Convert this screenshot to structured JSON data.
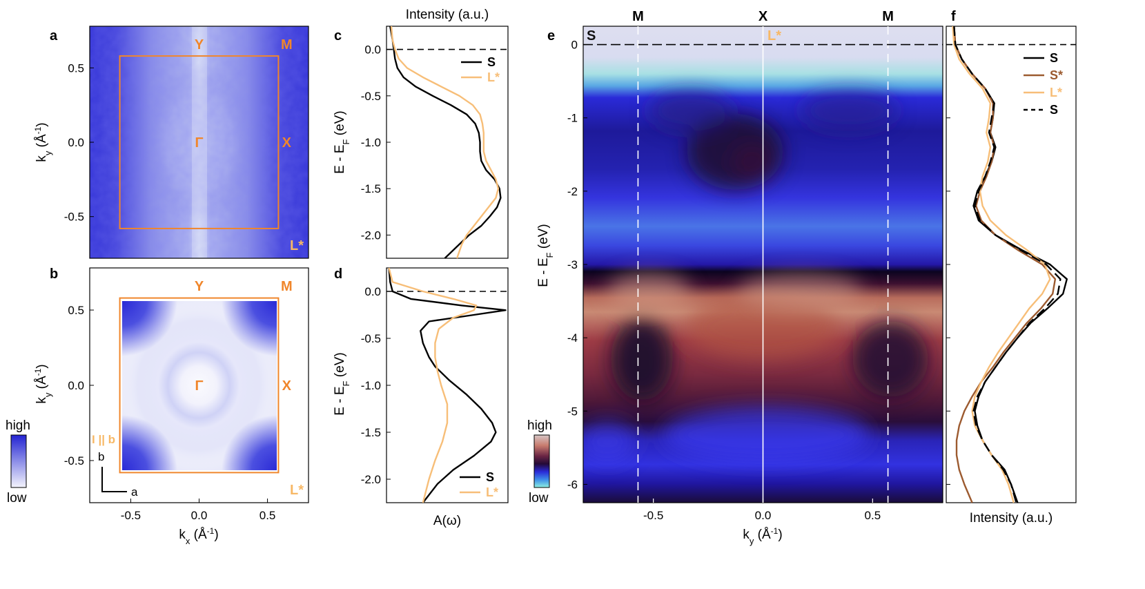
{
  "panel_labels": {
    "a": "a",
    "b": "b",
    "c": "c",
    "d": "d",
    "e": "e",
    "f": "f"
  },
  "colorbar_ab": {
    "high": "high",
    "low": "low"
  },
  "colorbar_e": {
    "high": "high",
    "low": "low"
  },
  "colors": {
    "S": "#000000",
    "S_star": "#9c5a2f",
    "L_star": "#f7be78",
    "bz_box": "#f0862b",
    "map_blue": "#3333d6",
    "map_low": "#f0f0fb"
  },
  "chart_data": [
    {
      "id": "a",
      "type": "heatmap",
      "title": "",
      "xlim": [
        -0.8,
        0.8
      ],
      "ylim": [
        -0.78,
        0.78
      ],
      "yticks": [
        -0.5,
        0.0,
        0.5
      ],
      "ytick_labels": [
        "-0.5",
        "0.0",
        "0.5"
      ],
      "ylabel_main": "k",
      "ylabel_sub": "y",
      "ylabel_unit": " (Å",
      "ylabel_exp": "-1",
      "ylabel_close": ")",
      "bz_box": {
        "kx": [
          -0.58,
          0.58
        ],
        "ky": [
          -0.58,
          0.58
        ]
      },
      "points": [
        {
          "label": "Y",
          "kx": 0.0,
          "ky": 0.66
        },
        {
          "label": "M",
          "kx": 0.64,
          "ky": 0.66
        },
        {
          "label": "Γ",
          "kx": 0.0,
          "ky": 0.0
        },
        {
          "label": "X",
          "kx": 0.64,
          "ky": 0.0
        }
      ],
      "tag": "L*"
    },
    {
      "id": "b",
      "type": "heatmap",
      "xlim": [
        -0.8,
        0.8
      ],
      "ylim": [
        -0.78,
        0.78
      ],
      "xticks": [
        -0.5,
        0.0,
        0.5
      ],
      "xtick_labels": [
        "-0.5",
        "0.0",
        "0.5"
      ],
      "yticks": [
        -0.5,
        0.0,
        0.5
      ],
      "ytick_labels": [
        "-0.5",
        "0.0",
        "0.5"
      ],
      "xlabel_main": "k",
      "xlabel_sub": "x",
      "xlabel_unit": " (Å",
      "xlabel_exp": "-1",
      "xlabel_close": ")",
      "ylabel_main": "k",
      "ylabel_sub": "y",
      "ylabel_unit": " (Å",
      "ylabel_exp": "-1",
      "ylabel_close": ")",
      "bz_box": {
        "kx": [
          -0.58,
          0.58
        ],
        "ky": [
          -0.58,
          0.58
        ]
      },
      "points": [
        {
          "label": "Y",
          "kx": 0.0,
          "ky": 0.66
        },
        {
          "label": "M",
          "kx": 0.64,
          "ky": 0.66
        },
        {
          "label": "Γ",
          "kx": 0.0,
          "ky": 0.0
        },
        {
          "label": "X",
          "kx": 0.64,
          "ky": 0.0
        }
      ],
      "tag": "L*",
      "field_label": "I || b",
      "lattice_axes": {
        "b": "b",
        "a": "a"
      }
    },
    {
      "id": "c",
      "type": "line",
      "title": "Intensity (a.u.)",
      "ylabel": "E - E",
      "ylabel_sub": "F",
      "ylabel_unit": " (eV)",
      "ylim": [
        -2.25,
        0.25
      ],
      "xlim": [
        0,
        1
      ],
      "yticks": [
        -2.0,
        -1.5,
        -1.0,
        -0.5,
        0.0
      ],
      "ytick_labels": [
        "-2.0",
        "-1.5",
        "-1.0",
        "-0.5",
        "0.0"
      ],
      "fermi_level": 0.0,
      "legend": [
        "S",
        "L*"
      ],
      "series": [
        {
          "name": "S",
          "color": "#000000",
          "E": [
            0.25,
            0.1,
            0.0,
            -0.1,
            -0.2,
            -0.3,
            -0.4,
            -0.5,
            -0.6,
            -0.7,
            -0.8,
            -0.9,
            -1.0,
            -1.1,
            -1.2,
            -1.3,
            -1.4,
            -1.5,
            -1.6,
            -1.7,
            -1.8,
            -1.9,
            -2.0,
            -2.1,
            -2.25
          ],
          "I": [
            0.03,
            0.05,
            0.06,
            0.07,
            0.09,
            0.14,
            0.24,
            0.38,
            0.53,
            0.66,
            0.73,
            0.76,
            0.77,
            0.77,
            0.78,
            0.82,
            0.89,
            0.93,
            0.94,
            0.91,
            0.85,
            0.78,
            0.68,
            0.6,
            0.48
          ]
        },
        {
          "name": "L*",
          "color": "#f7be78",
          "E": [
            0.25,
            0.1,
            0.0,
            -0.1,
            -0.2,
            -0.3,
            -0.4,
            -0.5,
            -0.6,
            -0.7,
            -0.8,
            -0.9,
            -1.0,
            -1.1,
            -1.2,
            -1.3,
            -1.4,
            -1.5,
            -1.6,
            -1.7,
            -1.8,
            -1.9,
            -2.0,
            -2.1,
            -2.25
          ],
          "I": [
            0.04,
            0.05,
            0.07,
            0.1,
            0.17,
            0.3,
            0.45,
            0.6,
            0.71,
            0.77,
            0.79,
            0.8,
            0.8,
            0.8,
            0.82,
            0.86,
            0.9,
            0.92,
            0.9,
            0.84,
            0.78,
            0.72,
            0.66,
            0.62,
            0.58
          ]
        }
      ]
    },
    {
      "id": "d",
      "type": "line",
      "xlabel": "A(ω)",
      "ylabel": "E - E",
      "ylabel_sub": "F",
      "ylabel_unit": " (eV)",
      "ylim": [
        -2.25,
        0.25
      ],
      "xlim": [
        0,
        1
      ],
      "yticks": [
        -2.0,
        -1.5,
        -1.0,
        -0.5,
        0.0
      ],
      "ytick_labels": [
        "-2.0",
        "-1.5",
        "-1.0",
        "-0.5",
        "0.0"
      ],
      "fermi_level": 0.0,
      "legend": [
        "S",
        "L*"
      ],
      "series": [
        {
          "name": "S",
          "color": "#000000",
          "E": [
            0.25,
            0.1,
            0.0,
            -0.08,
            -0.15,
            -0.2,
            -0.25,
            -0.32,
            -0.42,
            -0.55,
            -0.7,
            -0.8,
            -0.95,
            -1.1,
            -1.25,
            -1.4,
            -1.5,
            -1.6,
            -1.75,
            -1.9,
            -2.05,
            -2.25
          ],
          "I": [
            0.02,
            0.03,
            0.05,
            0.2,
            0.62,
            0.98,
            0.72,
            0.35,
            0.28,
            0.3,
            0.35,
            0.4,
            0.52,
            0.66,
            0.78,
            0.87,
            0.9,
            0.86,
            0.72,
            0.55,
            0.42,
            0.3
          ]
        },
        {
          "name": "L*",
          "color": "#f7be78",
          "E": [
            0.25,
            0.1,
            0.0,
            -0.08,
            -0.15,
            -0.2,
            -0.28,
            -0.4,
            -0.55,
            -0.7,
            -0.85,
            -1.0,
            -1.2,
            -1.4,
            -1.6,
            -1.8,
            -2.0,
            -2.25
          ],
          "I": [
            0.02,
            0.05,
            0.3,
            0.55,
            0.74,
            0.72,
            0.55,
            0.43,
            0.4,
            0.4,
            0.42,
            0.45,
            0.5,
            0.5,
            0.46,
            0.4,
            0.35,
            0.3
          ]
        }
      ]
    },
    {
      "id": "e",
      "type": "heatmap",
      "xlabel_main": "k",
      "xlabel_sub": "y",
      "xlabel_unit": " (Å",
      "xlabel_exp": "-1",
      "xlabel_close": ")",
      "ylabel": "E - E",
      "ylabel_sub": "F",
      "ylabel_unit": " (eV)",
      "xlim": [
        -0.82,
        0.82
      ],
      "ylim": [
        -6.25,
        0.25
      ],
      "xticks": [
        -0.5,
        0.0,
        0.5
      ],
      "xtick_labels": [
        "-0.5",
        "0.0",
        "0.5"
      ],
      "yticks": [
        -6,
        -5,
        -4,
        -3,
        -2,
        -1,
        0
      ],
      "ytick_labels": [
        "-6",
        "-5",
        "-4",
        "-3",
        "-2",
        "-1",
        "0"
      ],
      "high_symmetry": [
        {
          "label": "M",
          "ky": -0.57
        },
        {
          "label": "X",
          "ky": 0.0
        },
        {
          "label": "M",
          "ky": 0.57
        }
      ],
      "corner_labels": {
        "left": "S",
        "center": "L*"
      },
      "fermi_level": 0.0
    },
    {
      "id": "f",
      "type": "line",
      "xlabel": "Intensity (a.u.)",
      "ylim": [
        -6.25,
        0.25
      ],
      "xlim": [
        0,
        1
      ],
      "yticks": [
        -6,
        -5,
        -4,
        -3,
        -2,
        -1,
        0
      ],
      "fermi_level": 0.0,
      "legend": [
        "S",
        "S*",
        "L*",
        "S"
      ],
      "series": [
        {
          "name": "S",
          "color": "#000000",
          "dash": "solid",
          "E": [
            0.25,
            0.0,
            -0.2,
            -0.4,
            -0.6,
            -0.8,
            -1.0,
            -1.2,
            -1.4,
            -1.6,
            -1.8,
            -2.0,
            -2.2,
            -2.4,
            -2.6,
            -2.8,
            -3.0,
            -3.2,
            -3.4,
            -3.6,
            -3.8,
            -4.0,
            -4.2,
            -4.4,
            -4.6,
            -4.8,
            -5.0,
            -5.2,
            -5.4,
            -5.6,
            -5.8,
            -6.0,
            -6.25
          ],
          "I": [
            0.06,
            0.07,
            0.12,
            0.2,
            0.3,
            0.37,
            0.36,
            0.34,
            0.38,
            0.35,
            0.3,
            0.24,
            0.21,
            0.25,
            0.38,
            0.58,
            0.8,
            0.93,
            0.9,
            0.78,
            0.65,
            0.55,
            0.46,
            0.38,
            0.3,
            0.25,
            0.22,
            0.24,
            0.28,
            0.35,
            0.45,
            0.5,
            0.55
          ]
        },
        {
          "name": "S*",
          "color": "#9c5a2f",
          "dash": "solid",
          "E": [
            0.25,
            0.0,
            -0.2,
            -0.4,
            -0.6,
            -0.8,
            -1.0,
            -1.2,
            -1.4,
            -1.6,
            -1.8,
            -2.0,
            -2.2,
            -2.4,
            -2.6,
            -2.8,
            -3.0,
            -3.2,
            -3.4,
            -3.6,
            -3.8,
            -4.0,
            -4.2,
            -4.4,
            -4.6,
            -4.8,
            -5.0,
            -5.2,
            -5.4,
            -5.6,
            -5.8,
            -6.0,
            -6.25
          ],
          "I": [
            0.06,
            0.07,
            0.12,
            0.2,
            0.3,
            0.36,
            0.36,
            0.34,
            0.37,
            0.35,
            0.31,
            0.26,
            0.23,
            0.27,
            0.38,
            0.55,
            0.74,
            0.84,
            0.82,
            0.73,
            0.62,
            0.53,
            0.44,
            0.36,
            0.27,
            0.2,
            0.14,
            0.1,
            0.08,
            0.08,
            0.1,
            0.14,
            0.2
          ]
        },
        {
          "name": "L*",
          "color": "#f7be78",
          "dash": "solid",
          "E": [
            0.25,
            0.0,
            -0.2,
            -0.4,
            -0.6,
            -0.8,
            -1.0,
            -1.2,
            -1.4,
            -1.6,
            -1.8,
            -2.0,
            -2.2,
            -2.4,
            -2.6,
            -2.8,
            -3.0,
            -3.2,
            -3.4,
            -3.6,
            -3.8,
            -4.0,
            -4.2,
            -4.4,
            -4.6,
            -4.8,
            -5.0,
            -5.2,
            -5.4,
            -5.6,
            -5.8,
            -6.0,
            -6.25
          ],
          "I": [
            0.05,
            0.06,
            0.1,
            0.18,
            0.28,
            0.34,
            0.33,
            0.31,
            0.34,
            0.32,
            0.28,
            0.26,
            0.28,
            0.34,
            0.46,
            0.62,
            0.76,
            0.8,
            0.74,
            0.64,
            0.56,
            0.48,
            0.4,
            0.33,
            0.27,
            0.22,
            0.2,
            0.22,
            0.28,
            0.35,
            0.43,
            0.48,
            0.52
          ]
        },
        {
          "name": "S",
          "color": "#000000",
          "dash": "dashed",
          "E": [
            0.25,
            0.0,
            -0.2,
            -0.4,
            -0.6,
            -0.8,
            -1.0,
            -1.2,
            -1.4,
            -1.6,
            -1.8,
            -2.0,
            -2.2,
            -2.4,
            -2.6,
            -2.8,
            -3.0,
            -3.2,
            -3.4,
            -3.6,
            -3.8,
            -4.0,
            -4.2,
            -4.4,
            -4.6,
            -4.8,
            -5.0,
            -5.2,
            -5.4,
            -5.6,
            -5.8,
            -6.0,
            -6.25
          ],
          "I": [
            0.06,
            0.07,
            0.12,
            0.2,
            0.3,
            0.37,
            0.35,
            0.33,
            0.37,
            0.34,
            0.3,
            0.25,
            0.22,
            0.26,
            0.38,
            0.57,
            0.77,
            0.88,
            0.86,
            0.76,
            0.64,
            0.55,
            0.46,
            0.38,
            0.3,
            0.24,
            0.21,
            0.23,
            0.28,
            0.35,
            0.44,
            0.5,
            0.54
          ]
        }
      ]
    }
  ]
}
